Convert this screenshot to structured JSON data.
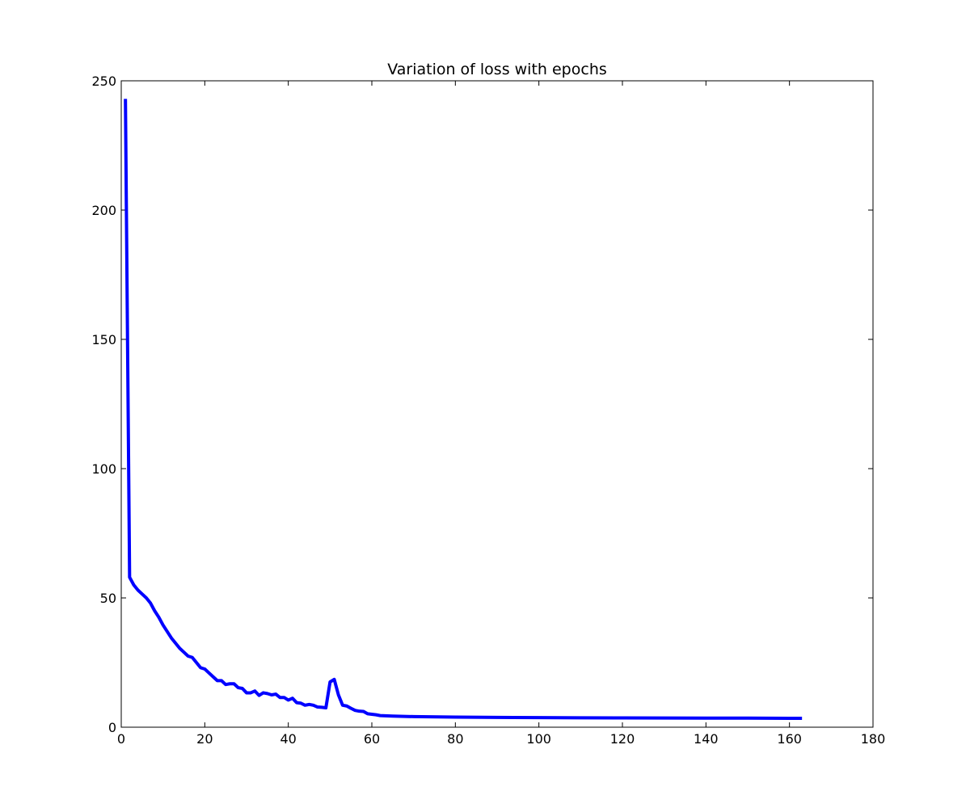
{
  "chart_data": {
    "type": "line",
    "title": "Variation of loss with epochs",
    "xlabel": "",
    "ylabel": "",
    "xlim": [
      0,
      180
    ],
    "ylim": [
      0,
      250
    ],
    "x_ticks": [
      0,
      20,
      40,
      60,
      80,
      100,
      120,
      140,
      160,
      180
    ],
    "y_ticks": [
      0,
      50,
      100,
      150,
      200,
      250
    ],
    "grid": false,
    "legend": "none",
    "series": [
      {
        "color": "#0000ff",
        "x": [
          1,
          2,
          3,
          4,
          5,
          6,
          7,
          8,
          9,
          10,
          11,
          12,
          13,
          14,
          15,
          16,
          17,
          18,
          19,
          20,
          21,
          22,
          23,
          24,
          25,
          26,
          27,
          28,
          29,
          30,
          31,
          32,
          33,
          34,
          35,
          36,
          37,
          38,
          39,
          40,
          41,
          42,
          43,
          44,
          45,
          46,
          47,
          48,
          49,
          50,
          51,
          52,
          53,
          54,
          55,
          56,
          57,
          58,
          59,
          60,
          61,
          62,
          65,
          70,
          80,
          90,
          100,
          110,
          120,
          130,
          140,
          150,
          160,
          163
        ],
        "y": [
          243,
          58,
          55,
          53,
          51.5,
          50,
          48,
          45,
          42.5,
          39.5,
          37,
          34.5,
          32.5,
          30.5,
          29,
          27.5,
          27,
          25,
          23,
          22.5,
          21,
          19.5,
          18,
          18,
          16.5,
          16.8,
          16.8,
          15.3,
          15,
          13.3,
          13.3,
          14,
          12.3,
          13.3,
          13,
          12.5,
          12.8,
          11.5,
          11.5,
          10.5,
          11.2,
          9.5,
          9.3,
          8.5,
          8.8,
          8.5,
          7.8,
          7.7,
          7.5,
          17.5,
          18.5,
          12.5,
          8.5,
          8.2,
          7.3,
          6.5,
          6.2,
          6.1,
          5.2,
          5.0,
          4.8,
          4.5,
          4.3,
          4.1,
          3.9,
          3.8,
          3.7,
          3.65,
          3.6,
          3.55,
          3.5,
          3.5,
          3.45,
          3.45
        ]
      }
    ]
  }
}
